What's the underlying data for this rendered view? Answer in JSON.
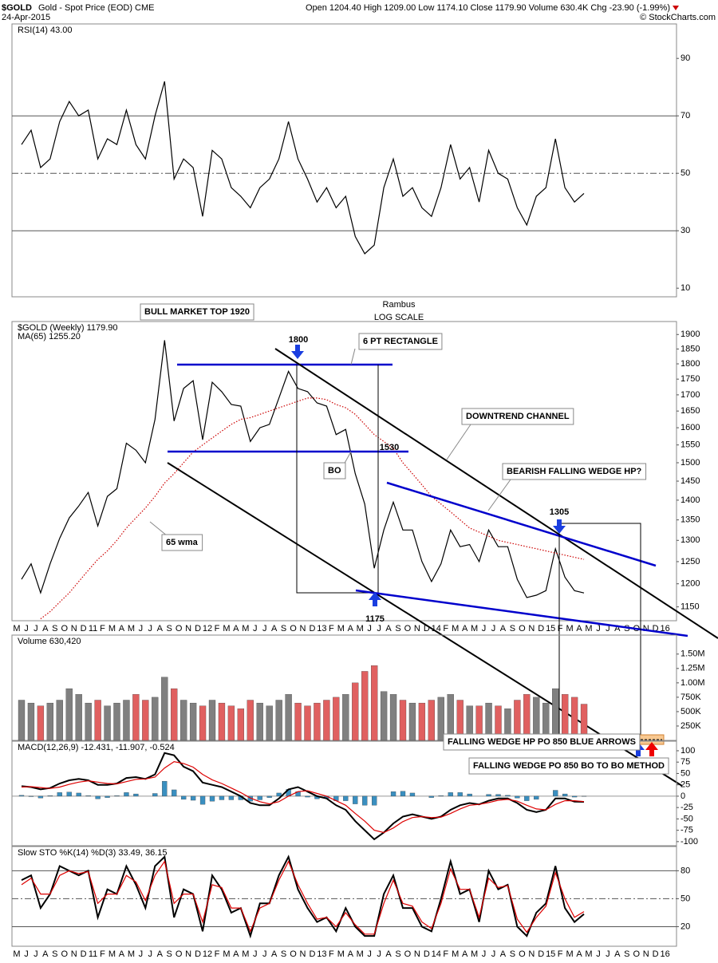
{
  "header": {
    "symbol": "$GOLD",
    "name": "Gold - Spot Price (EOD) CME",
    "date": "24-Apr-2015",
    "quote": "Open 1204.40  High 1209.00  Low 1174.10  Close 1179.90  Volume 630.4K  Chg -23.90 (-1.99%)",
    "credit": "© StockCharts.com"
  },
  "chart_data": [
    {
      "type": "line",
      "label": "RSI(14) 43.00",
      "ylim": [
        7,
        102
      ],
      "yticks": [
        90,
        70,
        50,
        30,
        10
      ],
      "ref_lines": [
        70,
        50,
        30
      ],
      "series": [
        {
          "color": "#000000",
          "values": [
            60,
            65,
            52,
            55,
            68,
            75,
            70,
            72,
            55,
            62,
            60,
            72,
            60,
            55,
            70,
            82,
            48,
            55,
            52,
            35,
            58,
            55,
            45,
            42,
            38,
            45,
            48,
            55,
            68,
            55,
            48,
            40,
            45,
            38,
            42,
            28,
            22,
            25,
            45,
            55,
            42,
            45,
            38,
            35,
            45,
            60,
            48,
            52,
            40,
            58,
            50,
            48,
            38,
            32,
            42,
            45,
            62,
            45,
            40,
            43.0,
            null,
            null,
            null,
            null,
            null,
            null,
            null,
            null,
            null
          ]
        }
      ]
    },
    {
      "type": "line",
      "log_scale": true,
      "ylim": [
        1121,
        1946
      ],
      "yticks": [
        1150,
        1200,
        1250,
        1300,
        1350,
        1400,
        1450,
        1500,
        1550,
        1600,
        1650,
        1700,
        1750,
        1800,
        1850,
        1900
      ],
      "categories": [
        "M",
        "J",
        "J",
        "A",
        "S",
        "O",
        "N",
        "D",
        "11",
        "F",
        "M",
        "A",
        "M",
        "J",
        "J",
        "A",
        "S",
        "O",
        "N",
        "D",
        "12",
        "F",
        "M",
        "A",
        "M",
        "J",
        "J",
        "A",
        "S",
        "O",
        "N",
        "D",
        "13",
        "F",
        "M",
        "A",
        "M",
        "J",
        "J",
        "A",
        "S",
        "O",
        "N",
        "D",
        "14",
        "F",
        "M",
        "A",
        "M",
        "J",
        "J",
        "A",
        "S",
        "O",
        "N",
        "D",
        "15",
        "F",
        "M",
        "A",
        "M",
        "J",
        "J",
        "A",
        "S",
        "O",
        "N",
        "D",
        "16"
      ],
      "series": [
        {
          "name": "$GOLD (Weekly) 1179.90",
          "color": "#000000",
          "values": [
            1210,
            1245,
            1180,
            1245,
            1305,
            1355,
            1385,
            1420,
            1335,
            1410,
            1430,
            1555,
            1535,
            1500,
            1625,
            1880,
            1620,
            1720,
            1745,
            1565,
            1740,
            1710,
            1670,
            1665,
            1560,
            1600,
            1610,
            1690,
            1775,
            1720,
            1710,
            1675,
            1665,
            1580,
            1595,
            1470,
            1390,
            1235,
            1325,
            1395,
            1325,
            1325,
            1250,
            1205,
            1245,
            1325,
            1285,
            1290,
            1250,
            1325,
            1285,
            1285,
            1210,
            1170,
            1175,
            1185,
            1280,
            1215,
            1185,
            1179.9,
            null,
            null,
            null,
            null,
            null,
            null,
            null,
            null,
            null
          ]
        },
        {
          "name": "MA(65) 1255.20",
          "color": "#cc0000",
          "dashed": true,
          "values": [
            null,
            null,
            1125,
            1140,
            1160,
            1180,
            1205,
            1230,
            1255,
            1275,
            1300,
            1330,
            1355,
            1380,
            1410,
            1445,
            1470,
            1500,
            1530,
            1550,
            1570,
            1590,
            1610,
            1625,
            1630,
            1640,
            1650,
            1660,
            1670,
            1680,
            1690,
            1690,
            1685,
            1670,
            1660,
            1640,
            1610,
            1580,
            1560,
            1540,
            1500,
            1470,
            1440,
            1410,
            1390,
            1370,
            1350,
            1330,
            1320,
            1310,
            1300,
            1295,
            1290,
            1285,
            1280,
            1275,
            1270,
            1265,
            1260,
            1255.2,
            null,
            null,
            null,
            null,
            null,
            null,
            null,
            null,
            null
          ]
        }
      ],
      "annotations": [
        {
          "text": "BULL MARKET TOP 1920",
          "color": "#000000"
        },
        {
          "text": "Rambus",
          "color": "#000000"
        },
        {
          "text": "LOG SCALE",
          "color": "#000000"
        },
        {
          "text": "1800",
          "color": "#000000"
        },
        {
          "text": "6 PT RECTANGLE",
          "color": "#0000cc"
        },
        {
          "text": "1530",
          "color": "#000000"
        },
        {
          "text": "BO",
          "color": "#0000cc"
        },
        {
          "text": "DOWNTREND CHANNEL",
          "color": "#000000"
        },
        {
          "text": "BEARISH FALLING WEDGE HP?",
          "color": "#0000cc"
        },
        {
          "text": "1305",
          "color": "#000000"
        },
        {
          "text": "65 wma",
          "color": "#cc0000"
        },
        {
          "text": "1175",
          "color": "#000000"
        },
        {
          "text": "FALLING WEDGE HP PO 850 BLUE ARROWS",
          "color": "#0000cc"
        },
        {
          "text": "FALLING WEDGE PO 850 BO TO BO METHOD",
          "color": "#dd0000"
        }
      ]
    },
    {
      "type": "bar",
      "label": "Volume 630,420",
      "ylim": [
        0,
        1830000
      ],
      "yticks": [
        {
          "value": 250000,
          "label": "250K"
        },
        {
          "value": 500000,
          "label": "500K"
        },
        {
          "value": 750000,
          "label": "750K"
        },
        {
          "value": 1000000,
          "label": "1.00M"
        },
        {
          "value": 1250000,
          "label": "1.25M"
        },
        {
          "value": 1500000,
          "label": "1.50M"
        }
      ],
      "series": [
        {
          "color": "#808080",
          "down_color": "#e06060",
          "values": [
            700000,
            650000,
            600000,
            650000,
            700000,
            900000,
            800000,
            650000,
            700000,
            600000,
            650000,
            700000,
            800000,
            700000,
            750000,
            1100000,
            900000,
            700000,
            650000,
            600000,
            700000,
            650000,
            600000,
            550000,
            700000,
            650000,
            600000,
            700000,
            800000,
            650000,
            600000,
            650000,
            700000,
            750000,
            800000,
            1000000,
            1200000,
            1300000,
            850000,
            800000,
            700000,
            650000,
            650000,
            700000,
            750000,
            800000,
            700000,
            600000,
            600000,
            650000,
            600000,
            550000,
            700000,
            800000,
            750000,
            650000,
            900000,
            800000,
            750000,
            630420,
            null,
            null,
            null,
            null,
            null,
            null,
            null,
            null,
            null
          ]
        }
      ]
    },
    {
      "type": "line",
      "label": "MACD(12,26,9) -12.431, -11.907, -0.524",
      "ylim": [
        -109,
        121
      ],
      "yticks": [
        100,
        75,
        50,
        25,
        0,
        -25,
        -50,
        -75,
        -100
      ],
      "ref_lines": [
        0
      ],
      "series": [
        {
          "type": "bar",
          "color": "#3a8fc0",
          "values": [
            2,
            -1,
            -4,
            1,
            8,
            9,
            7,
            1,
            -6,
            -3,
            1,
            8,
            5,
            0,
            6,
            33,
            14,
            -7,
            -9,
            -18,
            -11,
            -8,
            -8,
            -8,
            -11,
            -8,
            -3,
            7,
            15,
            10,
            -2,
            -6,
            -5,
            -10,
            -10,
            -17,
            -20,
            -20,
            0,
            10,
            11,
            7,
            0,
            -3,
            1,
            8,
            8,
            5,
            0,
            4,
            4,
            2,
            -4,
            -10,
            -7,
            0,
            13,
            5,
            -2,
            -0.524,
            null,
            null,
            null,
            null,
            null,
            null,
            null,
            null,
            null
          ]
        },
        {
          "color": "#000000",
          "width": 2,
          "values": [
            22,
            20,
            15,
            18,
            28,
            35,
            38,
            35,
            25,
            25,
            28,
            40,
            42,
            38,
            48,
            95,
            90,
            65,
            55,
            30,
            25,
            20,
            10,
            0,
            -15,
            -20,
            -20,
            -5,
            15,
            20,
            10,
            0,
            -5,
            -20,
            -30,
            -55,
            -75,
            -95,
            -80,
            -60,
            -45,
            -40,
            -45,
            -50,
            -45,
            -30,
            -20,
            -15,
            -18,
            -10,
            -5,
            -5,
            -15,
            -30,
            -35,
            -30,
            -5,
            -5,
            -12,
            -12.431,
            null,
            null,
            null,
            null,
            null,
            null,
            null,
            null,
            null
          ]
        },
        {
          "color": "#dd0000",
          "values": [
            20,
            21,
            19,
            17,
            20,
            26,
            31,
            34,
            31,
            28,
            27,
            32,
            37,
            38,
            42,
            62,
            76,
            72,
            64,
            48,
            36,
            28,
            18,
            8,
            -4,
            -12,
            -17,
            -12,
            0,
            10,
            12,
            6,
            0,
            -10,
            -20,
            -38,
            -55,
            -75,
            -80,
            -70,
            -56,
            -47,
            -45,
            -47,
            -46,
            -38,
            -28,
            -20,
            -18,
            -14,
            -9,
            -7,
            -11,
            -20,
            -28,
            -30,
            -18,
            -10,
            -10,
            -11.907,
            null,
            null,
            null,
            null,
            null,
            null,
            null,
            null,
            null
          ]
        }
      ]
    },
    {
      "type": "line",
      "label": "Slow STO %K(14) %D(3) 33.49, 36.15",
      "ylim": [
        -1,
        106
      ],
      "yticks": [
        80,
        50,
        20
      ],
      "ref_lines": [
        80,
        50,
        20
      ],
      "categories": [
        "M",
        "J",
        "J",
        "A",
        "S",
        "O",
        "N",
        "D",
        "11",
        "F",
        "M",
        "A",
        "M",
        "J",
        "J",
        "A",
        "S",
        "O",
        "N",
        "D",
        "12",
        "F",
        "M",
        "A",
        "M",
        "J",
        "J",
        "A",
        "S",
        "O",
        "N",
        "D",
        "13",
        "F",
        "M",
        "A",
        "M",
        "J",
        "J",
        "A",
        "S",
        "O",
        "N",
        "D",
        "14",
        "F",
        "M",
        "A",
        "M",
        "J",
        "J",
        "A",
        "S",
        "O",
        "N",
        "D",
        "15",
        "F",
        "M",
        "A",
        "M",
        "J",
        "J",
        "A",
        "S",
        "O",
        "N",
        "D",
        "16"
      ],
      "series": [
        {
          "color": "#000000",
          "width": 2,
          "values": [
            70,
            75,
            40,
            55,
            85,
            80,
            75,
            80,
            30,
            60,
            55,
            85,
            65,
            40,
            85,
            95,
            30,
            60,
            55,
            15,
            75,
            60,
            35,
            40,
            10,
            45,
            45,
            75,
            95,
            60,
            40,
            25,
            30,
            15,
            40,
            20,
            10,
            10,
            55,
            75,
            40,
            40,
            20,
            15,
            50,
            90,
            55,
            60,
            25,
            80,
            60,
            65,
            20,
            10,
            35,
            45,
            85,
            40,
            25,
            33.49,
            null,
            null,
            null,
            null,
            null,
            null,
            null,
            null,
            null
          ]
        },
        {
          "color": "#dd0000",
          "values": [
            65,
            72,
            55,
            55,
            75,
            80,
            77,
            79,
            45,
            55,
            55,
            75,
            68,
            48,
            75,
            90,
            45,
            55,
            55,
            25,
            65,
            62,
            40,
            40,
            15,
            40,
            45,
            70,
            90,
            65,
            45,
            28,
            30,
            20,
            35,
            22,
            12,
            12,
            45,
            70,
            45,
            42,
            25,
            18,
            45,
            82,
            60,
            60,
            30,
            72,
            62,
            64,
            28,
            14,
            30,
            42,
            78,
            50,
            30,
            36.15,
            null,
            null,
            null,
            null,
            null,
            null,
            null,
            null,
            null
          ]
        }
      ]
    }
  ]
}
